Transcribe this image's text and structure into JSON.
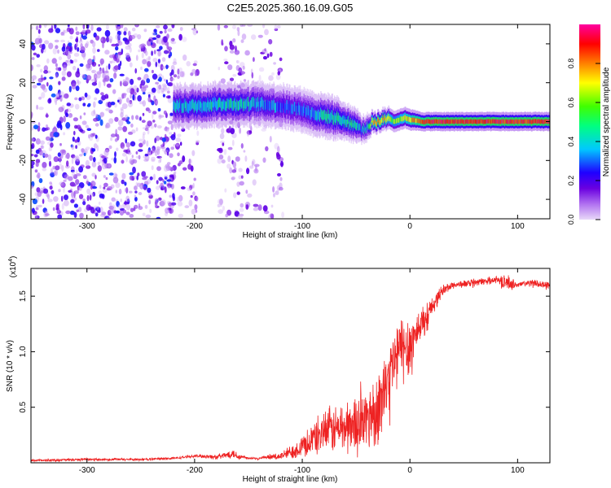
{
  "figure": {
    "title": "C2E5.2025.360.16.09.G05"
  },
  "chart_data": [
    {
      "type": "heatmap",
      "xlabel": "Height of straight line (km)",
      "ylabel": "Frequency (Hz)",
      "xlim": [
        -352,
        130
      ],
      "ylim": [
        -50,
        50
      ],
      "xticks": [
        -300,
        -200,
        -100,
        0,
        100
      ],
      "yticks": [
        -40,
        -20,
        0,
        20,
        40
      ],
      "colorbar": {
        "label": "Normalized spectral amplitude",
        "range": [
          0.0,
          1.0
        ],
        "ticks": [
          "0.0",
          "0.2",
          "0.4",
          "0.6",
          "0.8"
        ],
        "colors": [
          "#e8d8f8",
          "#b070f0",
          "#6a00e0",
          "#2000ff",
          "#00c8ff",
          "#00ff80",
          "#40ff00",
          "#ffff00",
          "#ff8000",
          "#ff0000",
          "#ff00a0"
        ]
      },
      "trace": {
        "name": "",
        "x": [
          -220,
          -200,
          -180,
          -160,
          -140,
          -120,
          -100,
          -90,
          -80,
          -70,
          -60,
          -50,
          -45,
          -40,
          -35,
          -30,
          -25,
          -20,
          -15,
          -10,
          -5,
          0,
          10,
          20,
          40,
          60,
          80,
          100,
          130
        ],
        "y": [
          8,
          8,
          9,
          9,
          9,
          8,
          6,
          4,
          3,
          2,
          0,
          -2,
          -4,
          -3,
          0,
          0,
          1,
          2,
          0,
          1,
          2,
          1,
          0,
          0,
          0,
          0,
          0,
          0,
          0
        ],
        "amplitude": [
          0.4,
          0.45,
          0.45,
          0.45,
          0.4,
          0.35,
          0.35,
          0.4,
          0.45,
          0.45,
          0.5,
          0.45,
          0.4,
          0.4,
          0.7,
          0.8,
          0.75,
          0.7,
          0.6,
          0.65,
          0.7,
          0.75,
          0.85,
          0.9,
          0.9,
          0.9,
          0.9,
          0.9,
          0.9
        ],
        "halfwidth_hz": [
          5,
          5,
          5,
          5,
          5,
          5,
          5,
          5,
          5,
          5,
          4,
          4,
          3,
          3,
          2.5,
          2.5,
          2.5,
          2.5,
          2.5,
          2.5,
          2.5,
          2.5,
          2.2,
          2.2,
          2.2,
          2.2,
          2.2,
          2.2,
          2.2
        ]
      },
      "noise_regions": [
        {
          "x_range": [
            -352,
            -218
          ],
          "density": "high",
          "amplitude": 0.3
        },
        {
          "x_range": [
            -216,
            -196
          ],
          "density": "medium",
          "amplitude": 0.2
        },
        {
          "x_range": [
            -178,
            -118
          ],
          "density": "medium",
          "amplitude": 0.2
        }
      ]
    },
    {
      "type": "line",
      "xlabel": "Height of straight line (km)",
      "ylabel": "SNR (10 * v/v)",
      "y_multiplier": "(x10",
      "y_multiplier_exp": "4",
      "y_multiplier_close": ")",
      "xlim": [
        -352,
        130
      ],
      "ylim": [
        0,
        1.75
      ],
      "xticks": [
        -300,
        -200,
        -100,
        0,
        100
      ],
      "yticks": [
        "0.5",
        "1.0",
        "1.5"
      ],
      "series": [
        {
          "name": "",
          "color": "#ee2222",
          "x": [
            -352,
            -300,
            -250,
            -220,
            -200,
            -190,
            -180,
            -170,
            -165,
            -160,
            -150,
            -140,
            -130,
            -120,
            -110,
            -100,
            -90,
            -80,
            -70,
            -60,
            -50,
            -40,
            -30,
            -25,
            -20,
            -15,
            -10,
            -5,
            0,
            5,
            10,
            20,
            30,
            40,
            60,
            80,
            90,
            100,
            110,
            130
          ],
          "y": [
            0.02,
            0.03,
            0.03,
            0.04,
            0.06,
            0.06,
            0.05,
            0.07,
            0.09,
            0.06,
            0.04,
            0.04,
            0.05,
            0.06,
            0.1,
            0.15,
            0.22,
            0.28,
            0.3,
            0.32,
            0.35,
            0.4,
            0.5,
            0.6,
            0.75,
            0.9,
            1.0,
            1.05,
            1.05,
            1.15,
            1.25,
            1.4,
            1.55,
            1.6,
            1.62,
            1.65,
            1.62,
            1.6,
            1.62,
            1.6
          ],
          "noise": [
            0.01,
            0.01,
            0.01,
            0.01,
            0.01,
            0.02,
            0.02,
            0.03,
            0.04,
            0.03,
            0.01,
            0.01,
            0.02,
            0.03,
            0.06,
            0.1,
            0.14,
            0.18,
            0.2,
            0.22,
            0.25,
            0.28,
            0.3,
            0.3,
            0.3,
            0.3,
            0.3,
            0.3,
            0.3,
            0.2,
            0.15,
            0.08,
            0.05,
            0.03,
            0.03,
            0.03,
            0.06,
            0.03,
            0.03,
            0.03
          ]
        }
      ]
    }
  ]
}
